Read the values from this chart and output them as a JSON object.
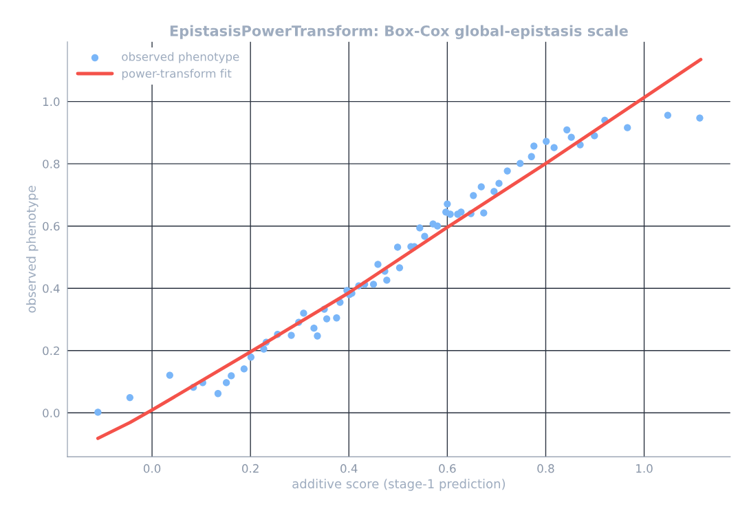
{
  "chart_data": {
    "type": "scatter",
    "title": "EpistasisPowerTransform: Box-Cox global-epistasis scale",
    "xlabel": "additive score (stage-1 prediction)",
    "ylabel": "observed phenotype",
    "series": [
      {
        "name": "observed phenotype",
        "color": "#7ab6f8",
        "marker": "circle",
        "x": [
          -0.11,
          -0.045,
          0.036,
          0.084,
          0.103,
          0.134,
          0.151,
          0.161,
          0.187,
          0.201,
          0.227,
          0.232,
          0.255,
          0.283,
          0.298,
          0.308,
          0.329,
          0.336,
          0.35,
          0.355,
          0.375,
          0.382,
          0.396,
          0.401,
          0.406,
          0.42,
          0.432,
          0.45,
          0.459,
          0.473,
          0.477,
          0.499,
          0.503,
          0.526,
          0.533,
          0.544,
          0.554,
          0.571,
          0.58,
          0.597,
          0.6,
          0.606,
          0.621,
          0.628,
          0.648,
          0.653,
          0.669,
          0.674,
          0.695,
          0.705,
          0.722,
          0.748,
          0.771,
          0.776,
          0.801,
          0.817,
          0.843,
          0.852,
          0.87,
          0.899,
          0.92,
          0.966,
          1.048,
          1.113
        ],
        "values": [
          0.002,
          0.049,
          0.121,
          0.082,
          0.097,
          0.062,
          0.097,
          0.119,
          0.141,
          0.179,
          0.205,
          0.227,
          0.252,
          0.249,
          0.291,
          0.32,
          0.272,
          0.247,
          0.333,
          0.302,
          0.305,
          0.355,
          0.393,
          0.38,
          0.384,
          0.408,
          0.413,
          0.413,
          0.477,
          0.455,
          0.426,
          0.532,
          0.466,
          0.534,
          0.534,
          0.594,
          0.567,
          0.607,
          0.6,
          0.645,
          0.671,
          0.638,
          0.638,
          0.645,
          0.64,
          0.698,
          0.726,
          0.642,
          0.711,
          0.737,
          0.777,
          0.801,
          0.823,
          0.857,
          0.872,
          0.852,
          0.909,
          0.885,
          0.861,
          0.89,
          0.94,
          0.916,
          0.956,
          0.947
        ]
      },
      {
        "name": "power-transform fit",
        "type": "line",
        "color": "#f4524a",
        "line_style": "solid",
        "x": [
          -0.11,
          -0.045,
          0.0,
          0.2,
          0.4,
          0.6,
          0.8,
          1.0,
          1.115
        ],
        "values": [
          -0.082,
          -0.031,
          0.009,
          0.196,
          0.386,
          0.596,
          0.801,
          1.013,
          1.135
        ]
      }
    ],
    "xlim": [
      -0.172,
      1.175
    ],
    "ylim": [
      -0.141,
      1.192
    ],
    "xticks": [
      {
        "value": 0,
        "label": "0.0"
      },
      0.2,
      0.4,
      0.6,
      0.8,
      {
        "value": 1,
        "label": "1.0"
      }
    ],
    "yticks": [
      {
        "value": 0,
        "label": "0.0"
      },
      0.2,
      0.4,
      0.6,
      0.8,
      {
        "value": 1,
        "label": "1.0"
      }
    ],
    "grid": true,
    "legend": "top left"
  }
}
